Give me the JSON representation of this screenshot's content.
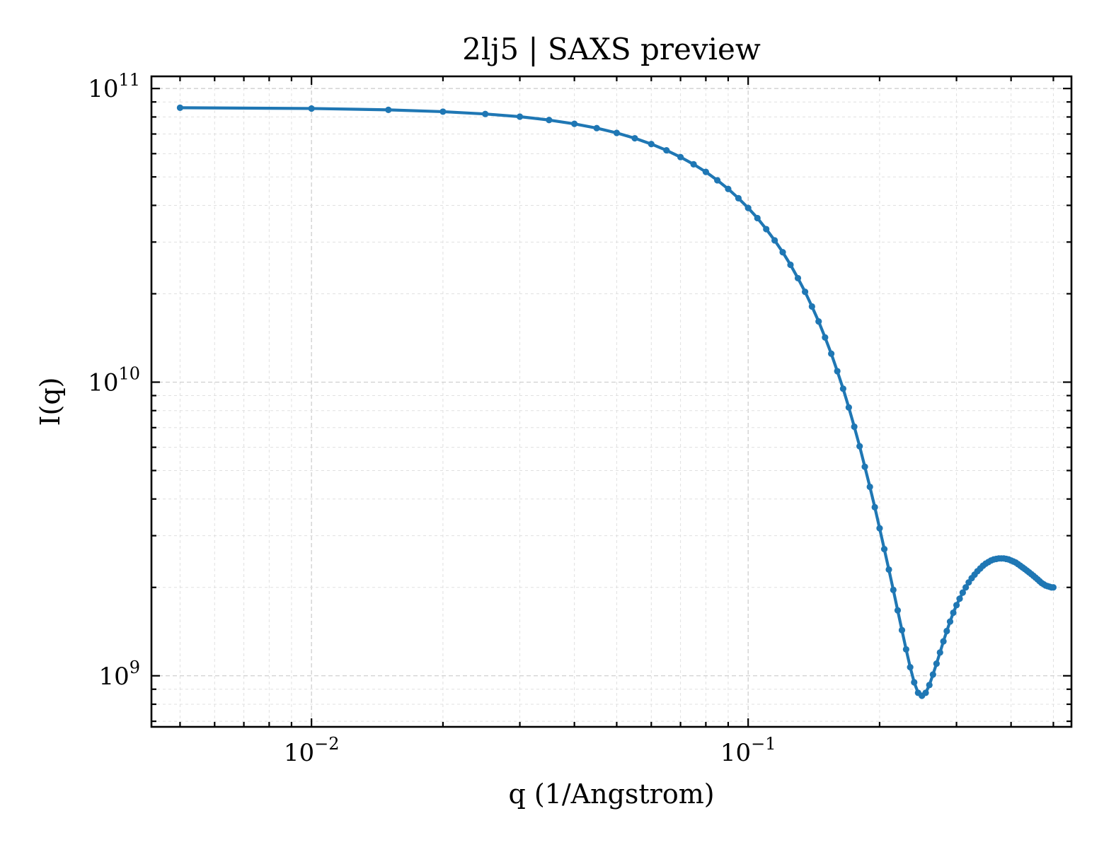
{
  "chart_data": {
    "type": "line",
    "title": "2lj5 | SAXS preview",
    "xlabel": "q (1/Angstrom)",
    "ylabel": "I(q)",
    "xscale": "log",
    "yscale": "log",
    "xlim": [
      0.0043,
      0.55
    ],
    "ylim": [
      670000000,
      110000000000
    ],
    "grid": true,
    "x_ticks": [
      {
        "value": 0.01,
        "base": "10",
        "exp": "−2"
      },
      {
        "value": 0.1,
        "base": "10",
        "exp": "−1"
      }
    ],
    "y_ticks": [
      {
        "value": 1000000000,
        "base": "10",
        "exp": "9"
      },
      {
        "value": 10000000000,
        "base": "10",
        "exp": "10"
      },
      {
        "value": 100000000000,
        "base": "10",
        "exp": "11"
      }
    ],
    "series": [
      {
        "color": "#1f77b4",
        "x": [
          0.005,
          0.01,
          0.015,
          0.02,
          0.025,
          0.03,
          0.035,
          0.04,
          0.045,
          0.05,
          0.055,
          0.06,
          0.065,
          0.07,
          0.075,
          0.08,
          0.085,
          0.09,
          0.095,
          0.1,
          0.105,
          0.11,
          0.115,
          0.12,
          0.125,
          0.13,
          0.135,
          0.14,
          0.145,
          0.15,
          0.155,
          0.16,
          0.165,
          0.17,
          0.175,
          0.18,
          0.185,
          0.19,
          0.195,
          0.2,
          0.205,
          0.21,
          0.215,
          0.22,
          0.225,
          0.23,
          0.235,
          0.24,
          0.245,
          0.25,
          0.255,
          0.26,
          0.265,
          0.27,
          0.275,
          0.28,
          0.285,
          0.29,
          0.295,
          0.3,
          0.305,
          0.31,
          0.315,
          0.32,
          0.325,
          0.33,
          0.335,
          0.34,
          0.345,
          0.35,
          0.355,
          0.36,
          0.365,
          0.37,
          0.375,
          0.38,
          0.385,
          0.39,
          0.395,
          0.4,
          0.405,
          0.41,
          0.415,
          0.42,
          0.425,
          0.43,
          0.435,
          0.44,
          0.445,
          0.45,
          0.455,
          0.46,
          0.465,
          0.47,
          0.475,
          0.48,
          0.485,
          0.49,
          0.495,
          0.5
        ],
        "y": [
          86000000000,
          85500000000,
          84600000000,
          83400000000,
          81900000000,
          80200000000,
          78100000000,
          75800000000,
          73300000000,
          70600000000,
          67700000000,
          64700000000,
          61600000000,
          58400000000,
          55200000000,
          52000000000,
          48700000000,
          45500000000,
          42300000000,
          39200000000,
          36200000000,
          33200000000,
          30400000000,
          27700000000,
          25100000000,
          22600000000,
          20300000000,
          18100000000,
          16100000000,
          14200000000,
          12500000000,
          10900000000,
          9500000000,
          8200000000,
          7050000000,
          6050000000,
          5150000000,
          4400000000,
          3750000000,
          3180000000,
          2700000000,
          2300000000,
          1960000000,
          1670000000,
          1430000000,
          1230000000,
          1070000000,
          950000000,
          875000000,
          855000000,
          875000000,
          930000000,
          1010000000,
          1100000000,
          1200000000,
          1310000000,
          1420000000,
          1530000000,
          1640000000,
          1740000000,
          1830000000,
          1920000000,
          2000000000,
          2080000000,
          2150000000,
          2210000000,
          2270000000,
          2320000000,
          2370000000,
          2410000000,
          2440000000,
          2470000000,
          2490000000,
          2500000000,
          2510000000,
          2510000000,
          2510000000,
          2500000000,
          2490000000,
          2470000000,
          2450000000,
          2430000000,
          2400000000,
          2370000000,
          2340000000,
          2310000000,
          2280000000,
          2250000000,
          2220000000,
          2190000000,
          2160000000,
          2130000000,
          2100000000,
          2070000000,
          2050000000,
          2030000000,
          2020000000,
          2010000000,
          2000000000,
          2000000000
        ]
      }
    ]
  }
}
